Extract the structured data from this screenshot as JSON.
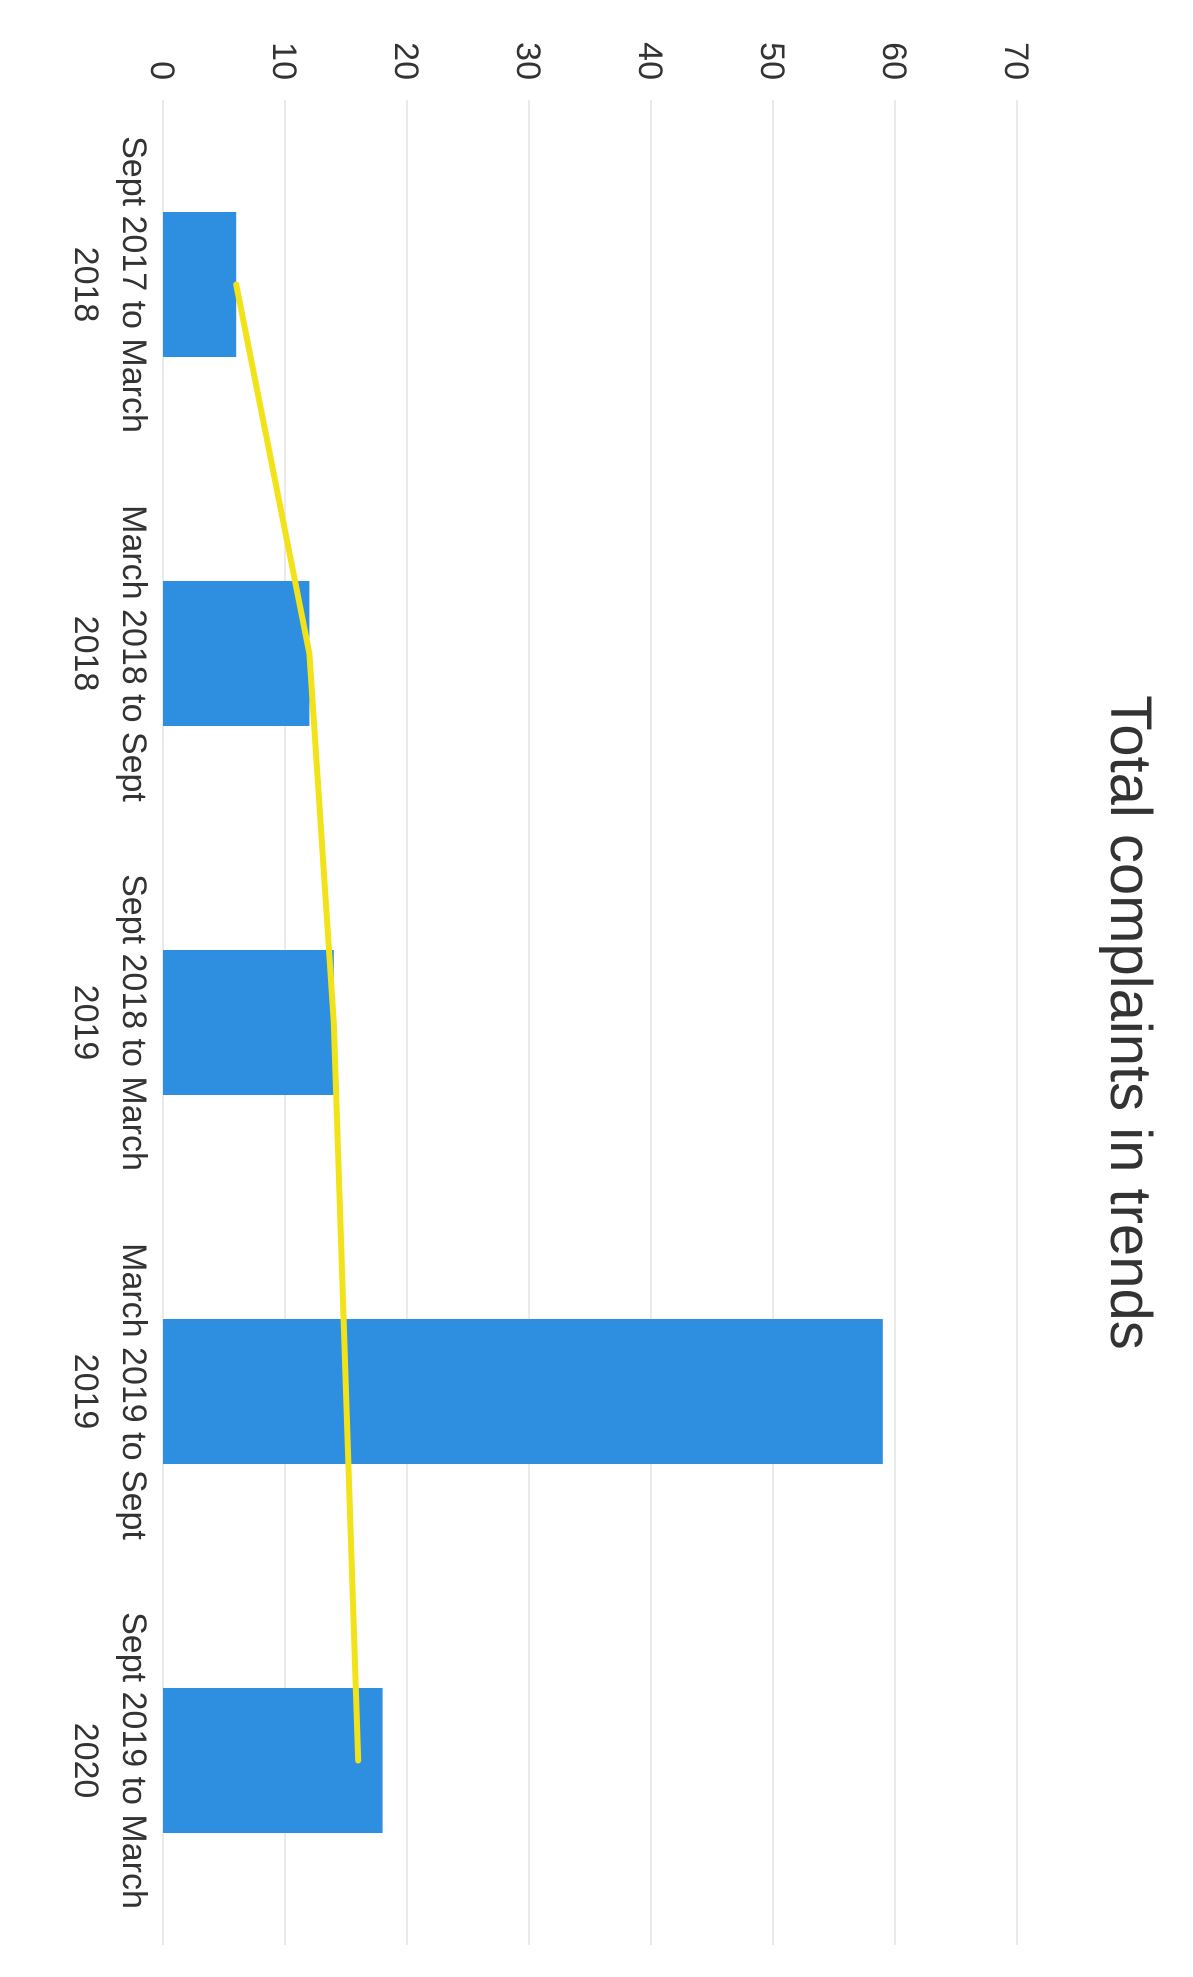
{
  "chart_data": {
    "type": "bar",
    "title": "Total complaints in trends",
    "orientation": "rotated-90-clockwise",
    "categories": [
      "Sept 2017 to March 2018",
      "March 2018 to Sept 2018",
      "Sept 2018 to March 2019",
      "March 2019 to Sept 2019",
      "Sept 2019 to March 2020"
    ],
    "category_lines": [
      [
        "Sept 2017 to March",
        "2018"
      ],
      [
        "March 2018 to Sept",
        "2018"
      ],
      [
        "Sept 2018 to March",
        "2019"
      ],
      [
        "March 2019 to Sept",
        "2019"
      ],
      [
        "Sept 2019 to March",
        "2020"
      ]
    ],
    "values": [
      6,
      12,
      14,
      59,
      18
    ],
    "trendline": {
      "type": "line",
      "values": [
        6,
        12,
        14,
        15,
        16
      ]
    },
    "yticks": [
      "0",
      "10",
      "20",
      "30",
      "40",
      "50",
      "60",
      "70"
    ],
    "ylim": [
      0,
      70
    ],
    "xlabel": "",
    "ylabel": "",
    "grid": true,
    "legend": "none",
    "colors": {
      "bar": "#2e8ee0",
      "trendline": "#f2e21a",
      "grid": "#e3e3e3",
      "text": "#333333"
    }
  }
}
